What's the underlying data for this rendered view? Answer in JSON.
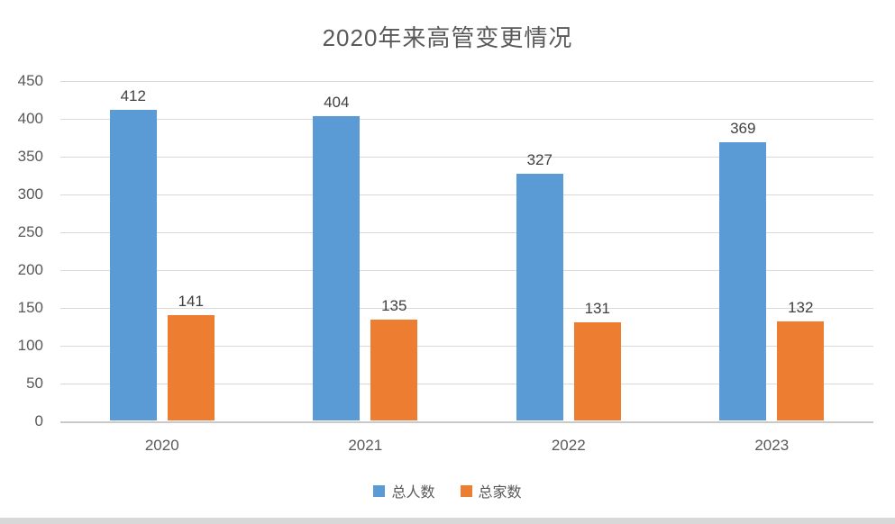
{
  "chart_data": {
    "type": "bar",
    "title": "2020年来高管变更情况",
    "categories": [
      "2020",
      "2021",
      "2022",
      "2023"
    ],
    "series": [
      {
        "name": "总人数",
        "color": "#5B9BD5",
        "values": [
          412,
          404,
          327,
          369
        ]
      },
      {
        "name": "总家数",
        "color": "#ED7D31",
        "values": [
          141,
          135,
          131,
          132
        ]
      }
    ],
    "xlabel": "",
    "ylabel": "",
    "ylim": [
      0,
      450
    ],
    "yticks": [
      0,
      50,
      100,
      150,
      200,
      250,
      300,
      350,
      400,
      450
    ],
    "grid": true,
    "data_labels": true,
    "legend_position": "bottom"
  },
  "colors": {
    "series_blue": "#5B9BD5",
    "series_orange": "#ED7D31",
    "gridline": "#d9d9d9",
    "axis_line": "#c9c9c9",
    "title_text": "#595959",
    "tick_text": "#595959",
    "data_label_text": "#404040",
    "bottom_strip": "#d8d8d8"
  }
}
